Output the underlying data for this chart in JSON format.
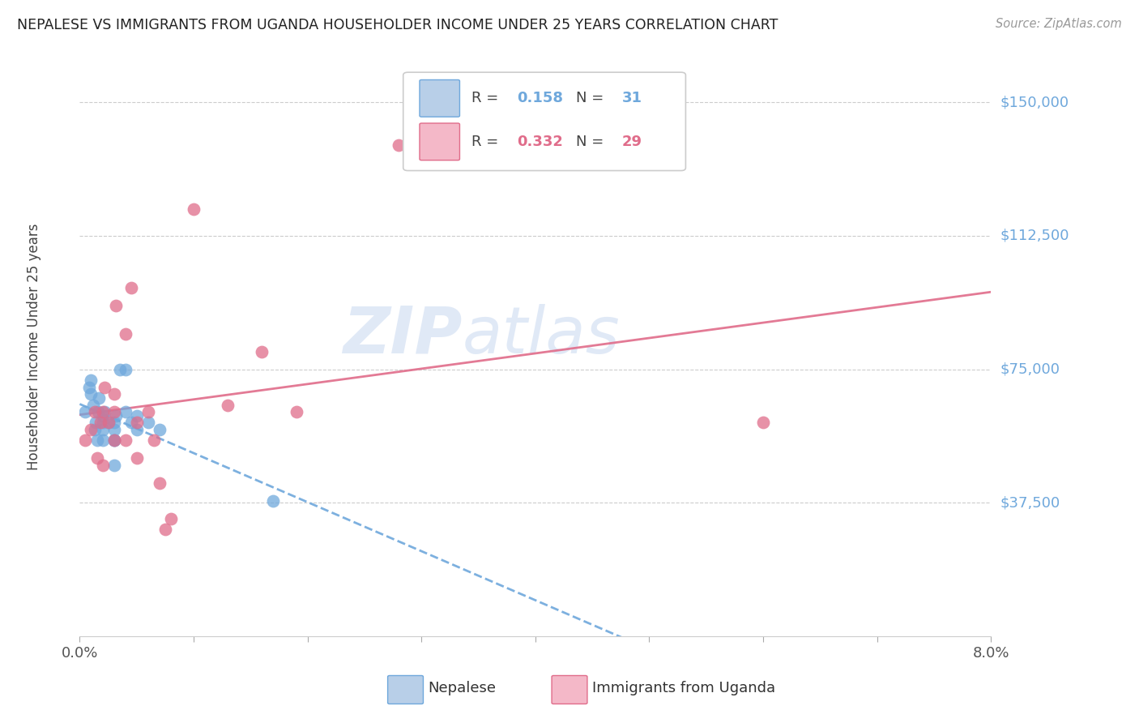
{
  "title": "NEPALESE VS IMMIGRANTS FROM UGANDA HOUSEHOLDER INCOME UNDER 25 YEARS CORRELATION CHART",
  "source": "Source: ZipAtlas.com",
  "ylabel": "Householder Income Under 25 years",
  "xlim": [
    0.0,
    0.08
  ],
  "ylim": [
    0,
    162500
  ],
  "yticks": [
    37500,
    75000,
    112500,
    150000
  ],
  "ytick_labels": [
    "$37,500",
    "$75,000",
    "$112,500",
    "$150,000"
  ],
  "color_blue": "#6fa8dc",
  "color_pink": "#e06c8a",
  "color_blue_light": "#b8cfe8",
  "color_pink_light": "#f4b8c8",
  "watermark_zip": "ZIP",
  "watermark_atlas": "atlas",
  "nepalese_x": [
    0.0005,
    0.0008,
    0.001,
    0.001,
    0.0012,
    0.0013,
    0.0014,
    0.0015,
    0.0016,
    0.0017,
    0.002,
    0.002,
    0.002,
    0.002,
    0.0022,
    0.0025,
    0.003,
    0.003,
    0.003,
    0.003,
    0.003,
    0.0032,
    0.0035,
    0.004,
    0.004,
    0.0045,
    0.005,
    0.005,
    0.006,
    0.007,
    0.017
  ],
  "nepalese_y": [
    63000,
    70000,
    68000,
    72000,
    65000,
    58000,
    60000,
    55000,
    63000,
    67000,
    62000,
    58000,
    55000,
    60000,
    63000,
    60000,
    58000,
    55000,
    60000,
    48000,
    55000,
    62000,
    75000,
    75000,
    63000,
    60000,
    58000,
    62000,
    60000,
    58000,
    38000
  ],
  "uganda_x": [
    0.0005,
    0.001,
    0.0013,
    0.0015,
    0.0018,
    0.002,
    0.002,
    0.0022,
    0.0025,
    0.003,
    0.003,
    0.003,
    0.0032,
    0.004,
    0.004,
    0.0045,
    0.005,
    0.005,
    0.006,
    0.0065,
    0.007,
    0.0075,
    0.008,
    0.01,
    0.013,
    0.016,
    0.019,
    0.028,
    0.06
  ],
  "uganda_y": [
    55000,
    58000,
    63000,
    50000,
    60000,
    63000,
    48000,
    70000,
    60000,
    63000,
    68000,
    55000,
    93000,
    85000,
    55000,
    98000,
    60000,
    50000,
    63000,
    55000,
    43000,
    30000,
    33000,
    120000,
    65000,
    80000,
    63000,
    138000,
    60000
  ]
}
